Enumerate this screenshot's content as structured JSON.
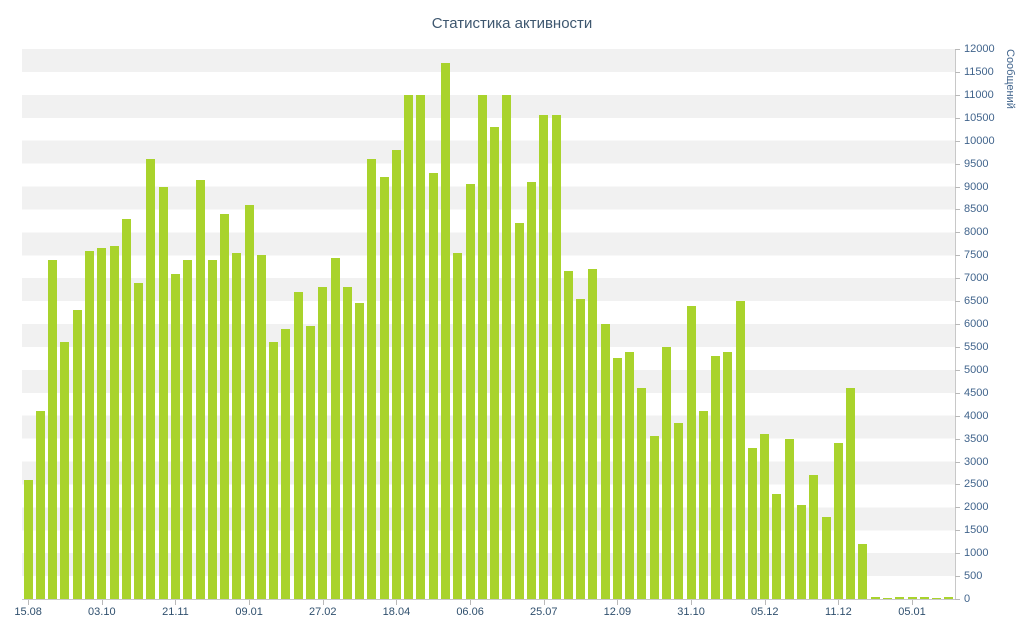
{
  "chart": {
    "title": "Статистика активности",
    "y_axis_title": "Сообщений"
  },
  "colors": {
    "bar": "#a9d32c",
    "title_text": "#3e576f",
    "x_axis_labels": "#30506e",
    "y_axis_labels": "#41648c",
    "band": "#f1f1f1",
    "axis_line": "#c8c8c8",
    "background": "#ffffff"
  },
  "chart_data": {
    "type": "bar",
    "title": "Статистика активности",
    "xlabel": "",
    "ylabel": "Сообщений",
    "ylim": [
      0,
      12000
    ],
    "ytick_step": 500,
    "yticks": [
      0,
      500,
      1000,
      1500,
      2000,
      2500,
      3000,
      3500,
      4000,
      4500,
      5000,
      5500,
      6000,
      6500,
      7000,
      7500,
      8000,
      8500,
      9000,
      9500,
      10000,
      10500,
      11000,
      11500,
      12000
    ],
    "grid": "alternating-horizontal-bands",
    "legend_position": "none",
    "x_labels": [
      "15.08",
      "03.10",
      "21.11",
      "09.01",
      "27.02",
      "18.04",
      "06.06",
      "25.07",
      "12.09",
      "31.10",
      "05.12",
      "11.12",
      "05.01"
    ],
    "x_label_every": 6,
    "values": [
      2600,
      4100,
      7400,
      5600,
      6300,
      7600,
      7650,
      7700,
      8300,
      6900,
      9600,
      9000,
      7100,
      7400,
      9150,
      7400,
      8400,
      7550,
      8600,
      7500,
      5600,
      5900,
      6700,
      5950,
      6800,
      7450,
      6800,
      6450,
      9600,
      9200,
      9800,
      11000,
      11000,
      9300,
      11700,
      7550,
      9050,
      11000,
      10300,
      11000,
      8200,
      9100,
      10550,
      10550,
      7150,
      6550,
      7200,
      6000,
      5250,
      5400,
      4600,
      3550,
      5500,
      3850,
      6400,
      4100,
      5300,
      5400,
      6500,
      3300,
      3600,
      2300,
      3500,
      2050,
      2700,
      1800,
      3400,
      4600,
      1200,
      40,
      25,
      50,
      35,
      45,
      25,
      40
    ]
  }
}
